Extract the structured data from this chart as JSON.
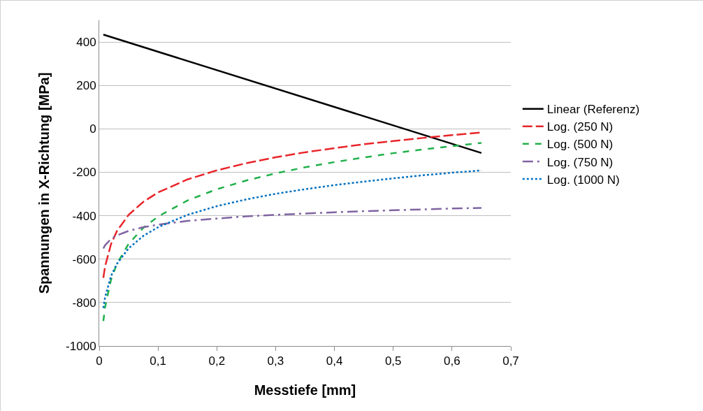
{
  "chart_data": {
    "type": "line",
    "xlabel": "Messtiefe [mm]",
    "ylabel": "Spannungen in X-Richtung [MPa]",
    "x": [
      0.007,
      0.01,
      0.02,
      0.03,
      0.05,
      0.075,
      0.1,
      0.15,
      0.2,
      0.25,
      0.3,
      0.35,
      0.4,
      0.45,
      0.5,
      0.55,
      0.6,
      0.65
    ],
    "series": [
      {
        "name": "Linear (Referenz)",
        "color": "#000000",
        "line_style": "solid",
        "x": [
          0.007,
          0.65
        ],
        "values": [
          434,
          -111
        ]
      },
      {
        "name": "Log. (250 N)",
        "color": "#e8252a",
        "line_style": "longdashed",
        "values": [
          -686,
          -633,
          -531,
          -471,
          -396,
          -336,
          -293,
          -233,
          -191,
          -158,
          -131,
          -108,
          -89,
          -71,
          -56,
          -42,
          -29,
          -17
        ]
      },
      {
        "name": "Log. (500 N)",
        "color": "#22b04b",
        "line_style": "dashed",
        "values": [
          -885,
          -821,
          -695,
          -622,
          -529,
          -456,
          -404,
          -330,
          -278,
          -238,
          -205,
          -177,
          -153,
          -132,
          -112,
          -95,
          -80,
          -65
        ]
      },
      {
        "name": "Log. (750 N)",
        "color": "#8064a2",
        "line_style": "dashdot",
        "values": [
          -551,
          -536,
          -507,
          -491,
          -470,
          -453,
          -441,
          -424,
          -413,
          -403,
          -396,
          -390,
          -384,
          -379,
          -375,
          -371,
          -367,
          -364
        ]
      },
      {
        "name": "Log. (1000 N)",
        "color": "#0070c0",
        "line_style": "dotted",
        "values": [
          -825,
          -775,
          -678,
          -622,
          -550,
          -493,
          -453,
          -396,
          -356,
          -325,
          -299,
          -278,
          -259,
          -243,
          -228,
          -214,
          -202,
          -191
        ]
      }
    ],
    "xlim": [
      0,
      0.7
    ],
    "xticks": [
      0,
      {
        "value": 0.1,
        "label": "0,1"
      },
      {
        "value": 0.2,
        "label": "0,2"
      },
      {
        "value": 0.3,
        "label": "0,3"
      },
      {
        "value": 0.4,
        "label": "0,4"
      },
      {
        "value": 0.5,
        "label": "0,5"
      },
      {
        "value": 0.6,
        "label": "0,6"
      },
      {
        "value": 0.7,
        "label": "0,7"
      }
    ],
    "ylim": [
      -1000,
      500
    ],
    "yticks": [
      -1000,
      -800,
      -600,
      -400,
      -200,
      0,
      200,
      400
    ],
    "grid": "y",
    "legend": "right",
    "marker": "none"
  }
}
